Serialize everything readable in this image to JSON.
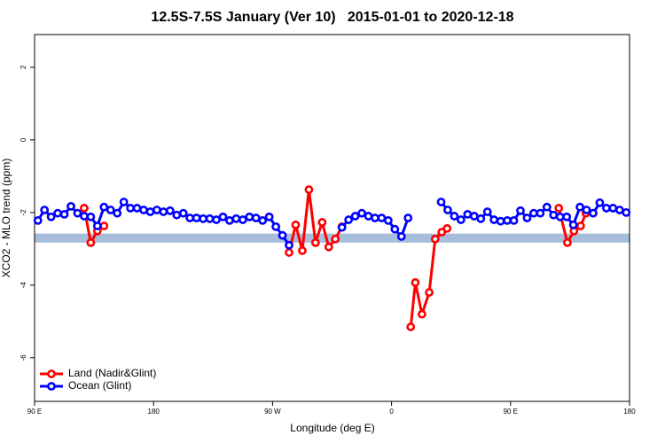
{
  "chart_data": {
    "type": "line",
    "title": "12.5S-7.5S January (Ver 10)   2015-01-01 to 2020-12-18",
    "xlabel": "Longitude (deg E)",
    "ylabel": "XCO2 - MLO trend (ppm)",
    "xlim": [
      90,
      540
    ],
    "ylim": [
      -7.2,
      2.9
    ],
    "xticks": [
      {
        "value": 90,
        "label": "90 E"
      },
      180,
      {
        "value": 270,
        "label": "90 W"
      },
      {
        "value": 360,
        "label": "0"
      },
      {
        "value": 450,
        "label": "90 E"
      },
      {
        "value": 540,
        "label": "180"
      }
    ],
    "yticks": [
      -6,
      -4,
      -2,
      0,
      2
    ],
    "grid": false,
    "legend": "bottom-left",
    "band": {
      "ymin": -2.83,
      "ymax": -2.58,
      "color": "#a7bedb"
    },
    "series": [
      {
        "name": "Land (Nadir&Glint)",
        "color": "#ff0000",
        "x": [
          127.5,
          132.5,
          137.5,
          142.5,
          null,
          282.5,
          287.5,
          292.5,
          297.5,
          302.5,
          307.5,
          312.5,
          317.5,
          322.5,
          null,
          374.5,
          378,
          383,
          388.5,
          393,
          398,
          402,
          null,
          486.5,
          493,
          498,
          503,
          507
        ],
        "values": [
          -1.88,
          -2.83,
          -2.51,
          -2.37,
          null,
          -3.1,
          -2.34,
          -3.05,
          -1.37,
          -2.83,
          -2.27,
          -2.95,
          -2.73,
          -2.39,
          null,
          -5.15,
          -3.93,
          -4.8,
          -4.2,
          -2.73,
          -2.54,
          -2.44,
          null,
          -1.88,
          -2.83,
          -2.51,
          -2.37,
          -2.02
        ]
      },
      {
        "name": "Ocean (Glint)",
        "color": "#0000ff",
        "x": [
          92.5,
          97.5,
          102.5,
          107.5,
          112.5,
          117.5,
          122.5,
          127.5,
          132.5,
          137.5,
          142.5,
          147.5,
          152.5,
          157.5,
          162.5,
          167.5,
          172.5,
          177.5,
          182.5,
          187.5,
          192.5,
          197.5,
          202.5,
          207.5,
          212.5,
          217.5,
          222.5,
          227.5,
          232.5,
          237.5,
          242.5,
          247.5,
          252.5,
          257.5,
          262.5,
          267.5,
          272.5,
          277.5,
          282.5,
          null,
          322.5,
          327.5,
          332.5,
          337.5,
          342.5,
          347.5,
          352.5,
          357.5,
          362.5,
          367.5,
          372.5,
          null,
          397.5,
          402.5,
          407.5,
          412.5,
          417.5,
          422.5,
          427.5,
          432.5,
          437.5,
          442.5,
          447.5,
          452.5,
          457.5,
          462.5,
          467.5,
          472.5,
          477.5,
          482.5,
          487.5,
          492.5,
          497.5,
          502.5,
          507.5,
          512.5,
          517.5,
          522.5,
          527.5,
          532.5,
          537.5
        ],
        "values": [
          -2.22,
          -1.93,
          -2.12,
          -2.02,
          -2.05,
          -1.83,
          -2.02,
          -2.1,
          -2.12,
          -2.37,
          -1.85,
          -1.93,
          -2.02,
          -1.71,
          -1.88,
          -1.88,
          -1.93,
          -1.98,
          -1.93,
          -1.98,
          -1.95,
          -2.07,
          -2.02,
          -2.15,
          -2.15,
          -2.17,
          -2.17,
          -2.2,
          -2.12,
          -2.22,
          -2.17,
          -2.2,
          -2.12,
          -2.15,
          -2.22,
          -2.12,
          -2.39,
          -2.63,
          -2.9,
          null,
          -2.41,
          -2.2,
          -2.1,
          -2.02,
          -2.1,
          -2.15,
          -2.15,
          -2.22,
          -2.46,
          -2.66,
          -2.15,
          null,
          -1.71,
          -1.93,
          -2.1,
          -2.2,
          -2.05,
          -2.1,
          -2.17,
          -1.98,
          -2.2,
          -2.24,
          -2.22,
          -2.22,
          -1.95,
          -2.15,
          -2.02,
          -2.02,
          -1.85,
          -2.07,
          -2.12,
          -2.12,
          -2.34,
          -1.85,
          -1.93,
          -2.02,
          -1.73,
          -1.88,
          -1.88,
          -1.93,
          -2.0
        ]
      }
    ]
  }
}
